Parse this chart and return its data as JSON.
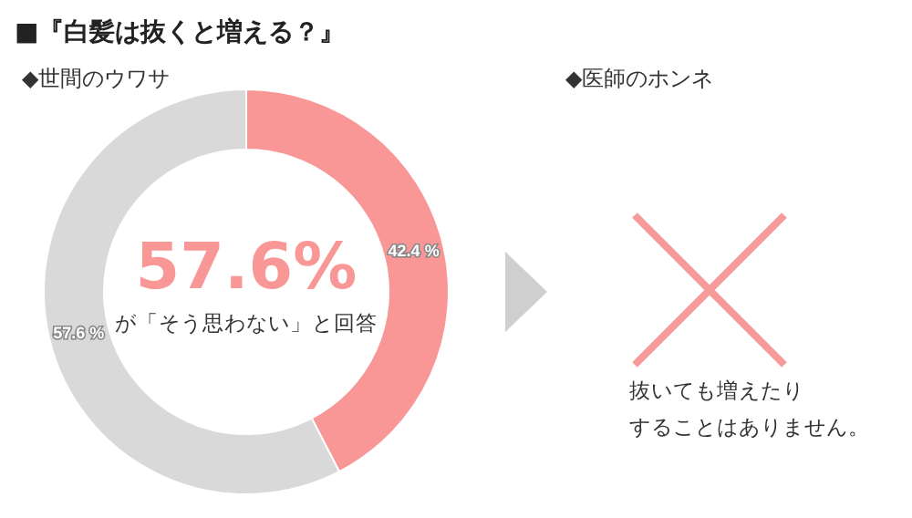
{
  "chart_data": [
    {
      "type": "donut",
      "title": "■『白髪は抜くと増える？』",
      "subtitle": "◆世間のウワサ",
      "categories": [
        null,
        null
      ],
      "values": [
        42.4,
        57.6
      ],
      "colors": [
        "#f99797",
        "#d9d9d9"
      ],
      "value_labels": [
        "42.4 %",
        "57.6 %"
      ],
      "annotations": [
        "57.6%",
        "が「そう思わない」と回答"
      ]
    },
    {
      "type": "other",
      "title": "◆医師のホンネ",
      "annotations": [
        "抜いても増えたり",
        "することはありません。"
      ]
    }
  ]
}
